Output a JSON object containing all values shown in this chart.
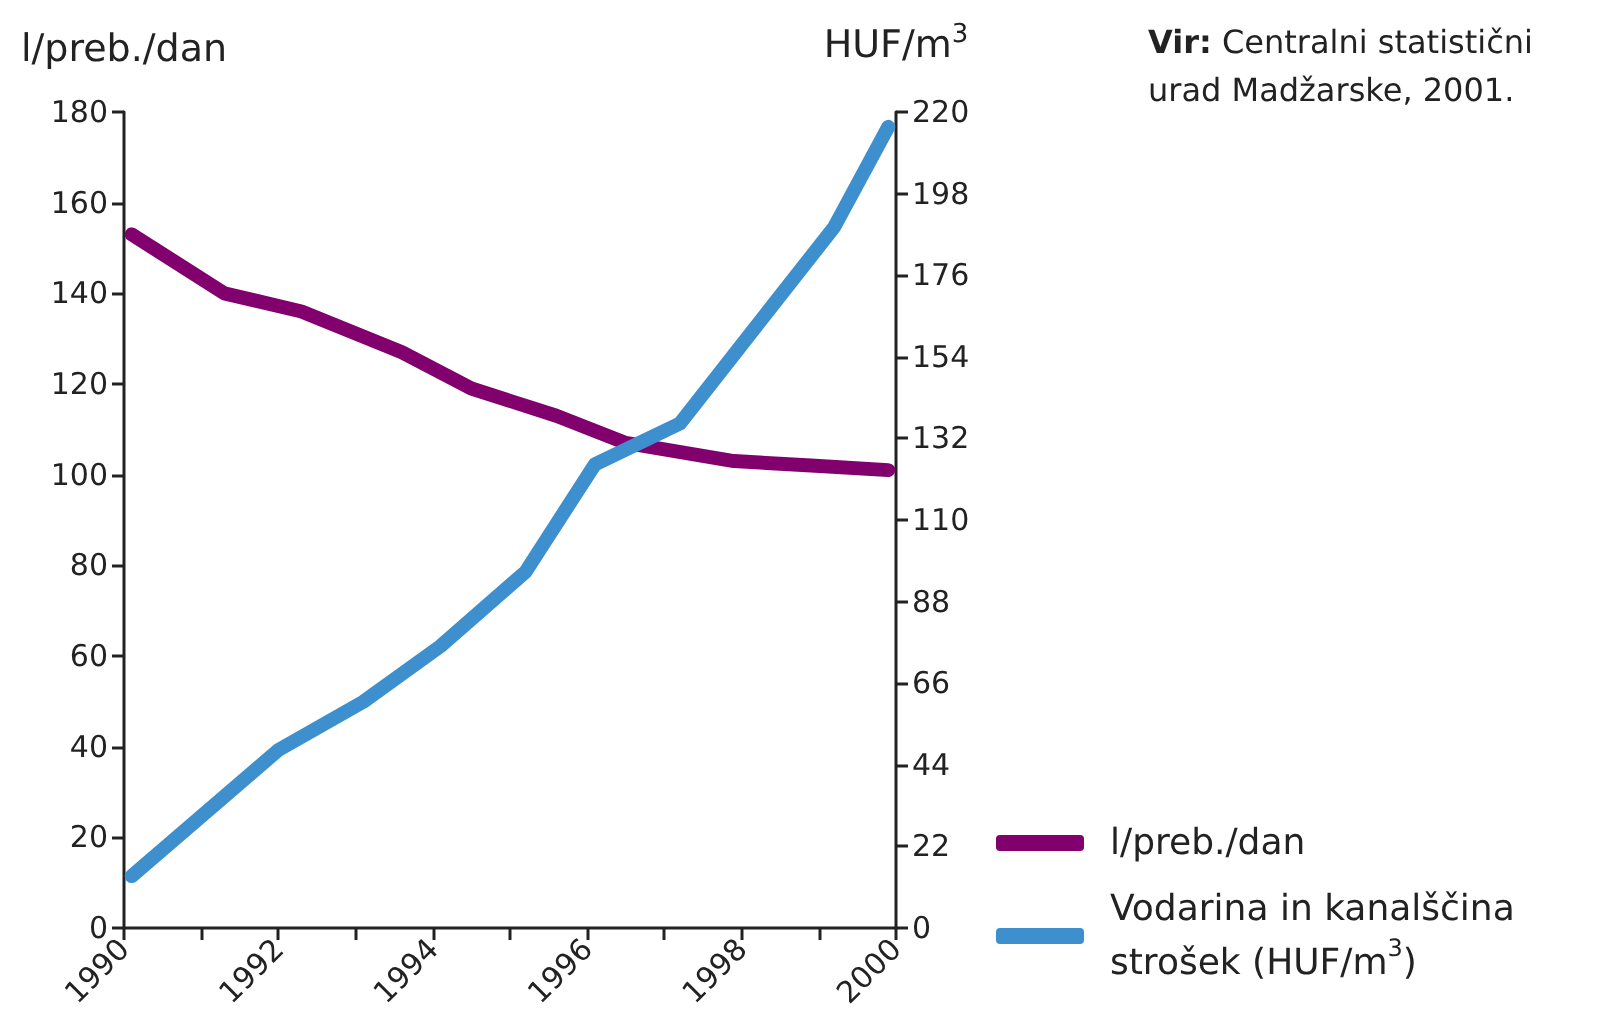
{
  "chart_data": {
    "type": "line",
    "ylabel": "l/preb./dan",
    "y2label": "HUF/m$^{3}$",
    "annotations": [
      "Vir: Centralni statistični urad Madžarske, 2001."
    ],
    "xlim": [
      1990,
      2000
    ],
    "xticks": [
      1990,
      {
        "value": 1991,
        "label": null
      },
      1992,
      {
        "value": 1993,
        "label": null
      },
      1994,
      {
        "value": 1995,
        "label": null
      },
      1996,
      {
        "value": 1997,
        "label": null
      },
      1998,
      {
        "value": 1999,
        "label": null
      },
      2000
    ],
    "ylim": [
      0,
      180
    ],
    "yticks": [
      0,
      20,
      40,
      60,
      80,
      100,
      120,
      140,
      160,
      180
    ],
    "y2lim": [
      0,
      220
    ],
    "y2ticks": [
      0,
      22,
      44,
      66,
      88,
      110,
      132,
      154,
      176,
      198,
      220
    ],
    "series": [
      {
        "name": "l/preb./dan",
        "color": "#82006e",
        "x": [
          1990.1,
          1991.3,
          1992.3,
          1993.6,
          1994.5,
          1995.6,
          1996.5,
          1997.9,
          1998.9,
          1999.9
        ],
        "values": [
          153,
          140,
          136,
          127,
          119,
          113,
          107,
          103,
          102,
          101
        ]
      },
      {
        "name": "Vodarina in kanalščina strošek (HUF/m$^{3}$)",
        "color": "#3d8fce",
        "axis": "y2",
        "x": [
          1990.1,
          1992.0,
          1993.1,
          1994.1,
          1995.2,
          1996.1,
          1997.2,
          1999.2,
          1999.9
        ],
        "values": [
          14,
          48,
          61,
          76,
          96,
          125,
          136,
          189,
          216
        ]
      }
    ],
    "grid": false,
    "legend": "bottom right",
    "marker": "none",
    "line_style": "solid"
  }
}
